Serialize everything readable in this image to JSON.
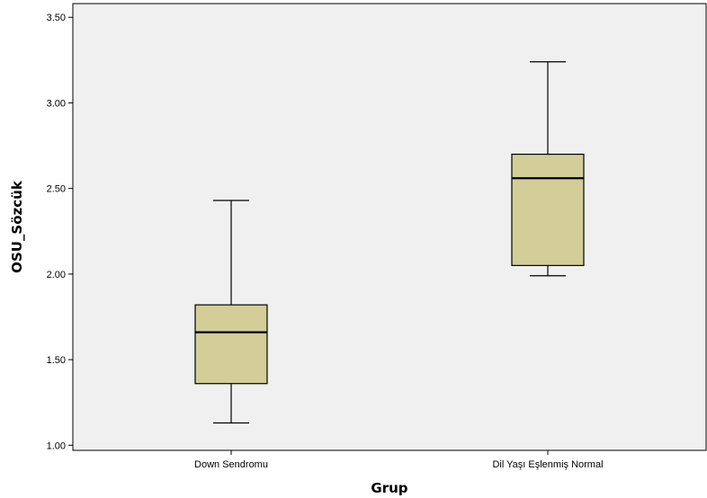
{
  "chart_data": {
    "type": "boxplot",
    "title": "",
    "xlabel": "Grup",
    "ylabel": "OSU_Sözcük",
    "ylim": [
      0.97,
      3.58
    ],
    "yticks": [
      1.0,
      1.5,
      2.0,
      2.5,
      3.0,
      3.5
    ],
    "ytick_labels": [
      "1.00",
      "1.50",
      "2.00",
      "2.50",
      "3.00",
      "3.50"
    ],
    "categories": [
      "Down Sendromu",
      "Dil Yaşı Eşlenmiş Normal"
    ],
    "boxes": [
      {
        "category": "Down Sendromu",
        "whisker_low": 1.13,
        "q1": 1.36,
        "median": 1.66,
        "q3": 1.82,
        "whisker_high": 2.43
      },
      {
        "category": "Dil Yaşı Eşlenmiş Normal",
        "whisker_low": 1.99,
        "q1": 2.05,
        "median": 2.56,
        "q3": 2.7,
        "whisker_high": 3.24
      }
    ],
    "grid": false,
    "legend": "none",
    "colors": {
      "plot_background": "#f0f0f0",
      "box_fill": "#d3ce97",
      "box_stroke": "#000000",
      "page_background": "#ffffff"
    }
  }
}
